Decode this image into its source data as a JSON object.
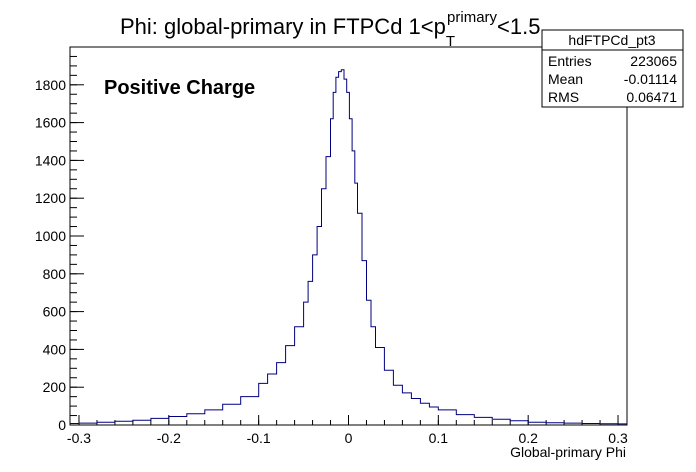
{
  "chart_data": {
    "type": "line",
    "title": "Phi: global-primary in FTPCd 1<p",
    "title_superscript": "primary",
    "title_subscript": "T",
    "title_tail": "<1.5",
    "xlabel": "Global-primary Phi",
    "ylabel": "",
    "annotation": "Positive Charge",
    "xlim": [
      -0.31,
      0.31
    ],
    "ylim": [
      0,
      2000
    ],
    "x_ticks": [
      "-0.3",
      "-0.2",
      "-0.1",
      "0",
      "0.1",
      "0.2",
      "0.3"
    ],
    "y_ticks": [
      "0",
      "200",
      "400",
      "600",
      "800",
      "1000",
      "1200",
      "1400",
      "1600",
      "1800"
    ],
    "grid": false,
    "line_color": "#000080",
    "stats_box": {
      "name": "hdFTPCd_pt3",
      "rows": [
        {
          "label": "Entries",
          "value": "223065"
        },
        {
          "label": "Mean",
          "value": "-0.01114"
        },
        {
          "label": "RMS",
          "value": "0.06471"
        }
      ]
    },
    "series": [
      {
        "x": [
          -0.31,
          -0.3,
          -0.28,
          -0.26,
          -0.24,
          -0.22,
          -0.2,
          -0.18,
          -0.16,
          -0.14,
          -0.12,
          -0.1,
          -0.09,
          -0.08,
          -0.07,
          -0.06,
          -0.05,
          -0.045,
          -0.04,
          -0.035,
          -0.03,
          -0.025,
          -0.02,
          -0.017,
          -0.014,
          -0.011,
          -0.008,
          -0.005,
          -0.002,
          0.001,
          0.004,
          0.007,
          0.01,
          0.015,
          0.02,
          0.025,
          0.03,
          0.04,
          0.05,
          0.06,
          0.07,
          0.08,
          0.09,
          0.1,
          0.12,
          0.14,
          0.16,
          0.18,
          0.2,
          0.22,
          0.24,
          0.26,
          0.28,
          0.3,
          0.31
        ],
        "values": [
          8,
          10,
          15,
          20,
          25,
          35,
          45,
          60,
          80,
          110,
          150,
          220,
          270,
          330,
          420,
          520,
          650,
          760,
          900,
          1050,
          1250,
          1420,
          1620,
          1760,
          1840,
          1870,
          1880,
          1830,
          1760,
          1620,
          1450,
          1280,
          1120,
          870,
          660,
          520,
          410,
          290,
          210,
          170,
          140,
          115,
          95,
          80,
          55,
          40,
          30,
          22,
          15,
          12,
          10,
          8,
          7,
          6,
          5
        ]
      }
    ]
  }
}
